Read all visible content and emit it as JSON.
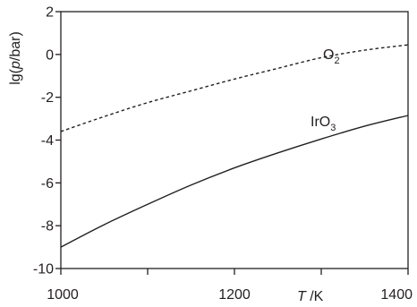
{
  "chart_data": {
    "type": "line",
    "xlabel": "T /K",
    "xlabel_var": "T",
    "xlabel_unit": " /K",
    "ylabel": "lg(p/bar)",
    "ylabel_pre": "lg(",
    "ylabel_var": "p",
    "ylabel_post": "/bar)",
    "xlim": [
      1000,
      1400
    ],
    "ylim": [
      -10,
      2
    ],
    "x_ticks": [
      1000,
      1100,
      1200,
      1300,
      1400
    ],
    "x_tick_labels": [
      "1000",
      "",
      "1200",
      "",
      "1400"
    ],
    "y_ticks": [
      -10,
      -8,
      -6,
      -4,
      -2,
      0,
      2
    ],
    "y_tick_labels": [
      "-10",
      "-8",
      "-6",
      "-4",
      "-2",
      "0",
      "2"
    ],
    "grid": false,
    "series": [
      {
        "name": "O2",
        "label_main": "O",
        "label_sub": "2",
        "style": "dashed",
        "color": "#231f20",
        "x": [
          1000,
          1050,
          1100,
          1150,
          1200,
          1250,
          1300,
          1350,
          1400
        ],
        "y": [
          -3.6,
          -2.9,
          -2.25,
          -1.7,
          -1.15,
          -0.65,
          -0.15,
          0.2,
          0.45
        ]
      },
      {
        "name": "IrO3",
        "label_main": "IrO",
        "label_sub": "3",
        "style": "solid",
        "color": "#231f20",
        "x": [
          1000,
          1050,
          1100,
          1150,
          1200,
          1250,
          1300,
          1350,
          1400
        ],
        "y": [
          -9.0,
          -7.95,
          -7.0,
          -6.1,
          -5.3,
          -4.6,
          -3.95,
          -3.35,
          -2.85
        ]
      }
    ]
  }
}
